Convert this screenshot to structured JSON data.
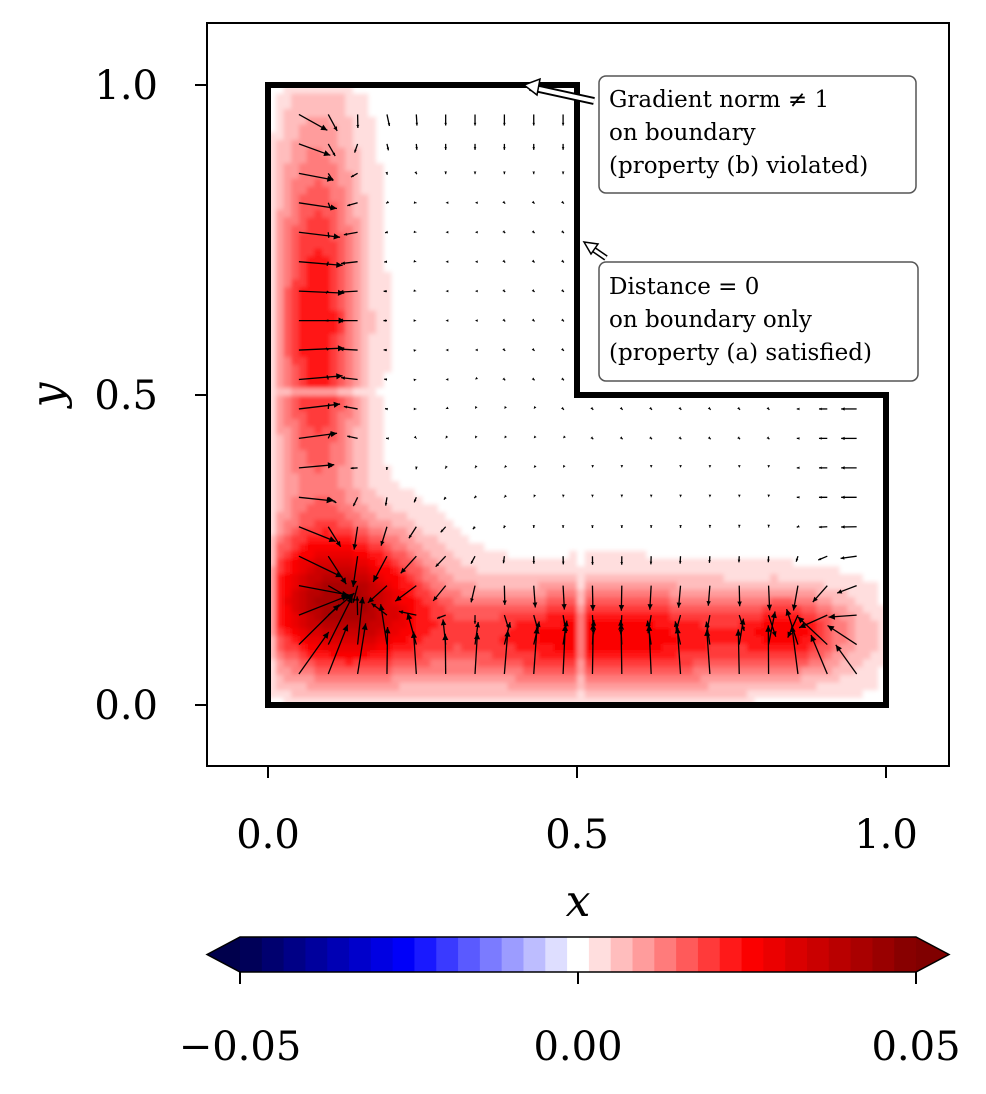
{
  "chart_data": {
    "type": "heatmap",
    "subtype": "filled-contour-with-quiver",
    "xlabel": "x",
    "ylabel": "y",
    "xlim": [
      -0.1,
      1.1
    ],
    "ylim": [
      -0.1,
      1.1
    ],
    "x_ticks": [
      0.0,
      0.5,
      1.0
    ],
    "y_ticks": [
      0.0,
      0.5,
      1.0
    ],
    "x_tick_labels": [
      "0.0",
      "0.5",
      "1.0"
    ],
    "y_tick_labels": [
      "0.0",
      "0.5",
      "1.0"
    ],
    "grid": false,
    "domain_boundary": [
      [
        0,
        0
      ],
      [
        1,
        0
      ],
      [
        1,
        0.5
      ],
      [
        0.5,
        0.5
      ],
      [
        0.5,
        1
      ],
      [
        0,
        1
      ],
      [
        0,
        0
      ]
    ],
    "colormap": "seismic",
    "colorbar": {
      "orientation": "horizontal",
      "position": "bottom",
      "range": [
        -0.05,
        0.05
      ],
      "extend": "both",
      "levels": 31,
      "ticks": [
        -0.05,
        0.0,
        0.05
      ],
      "tick_labels": [
        "−0.05",
        "0.00",
        "0.05"
      ]
    },
    "field_max": 0.044,
    "annotations": [
      {
        "lines": [
          "Gradient norm ≠ 1",
          "on boundary",
          "(property (b) violated)"
        ],
        "arrow_target": [
          0.41,
          1.0
        ]
      },
      {
        "lines": [
          "Distance = 0",
          "on boundary only",
          "(property (a) satisfied)"
        ],
        "arrow_target": [
          0.51,
          0.75
        ]
      }
    ],
    "colors": {
      "boundary": "#000000",
      "arrows": "#000000",
      "annotation_box_edge": "#555555"
    }
  }
}
